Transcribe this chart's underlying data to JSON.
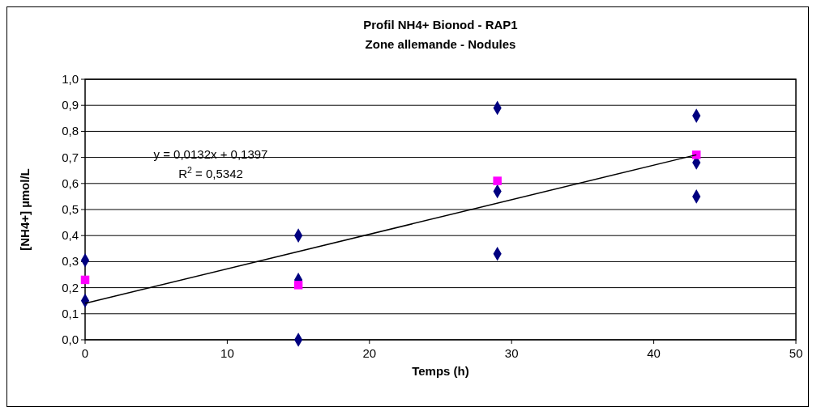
{
  "chart_data": {
    "type": "scatter",
    "title": "Profil NH4+ Bionod - RAP1",
    "subtitle": "Zone allemande - Nodules",
    "xlabel": "Temps (h)",
    "ylabel": "[NH4+] µmol/L",
    "xlim": [
      0,
      50
    ],
    "xticks": [
      0,
      10,
      20,
      30,
      40,
      50
    ],
    "ylim": [
      0,
      1
    ],
    "yticks": [
      {
        "value": 0,
        "label": "0,0"
      },
      {
        "value": 0.1,
        "label": "0,1"
      },
      {
        "value": 0.2,
        "label": "0,2"
      },
      {
        "value": 0.3,
        "label": "0,3"
      },
      {
        "value": 0.4,
        "label": "0,4"
      },
      {
        "value": 0.5,
        "label": "0,5"
      },
      {
        "value": 0.6,
        "label": "0,6"
      },
      {
        "value": 0.7,
        "label": "0,7"
      },
      {
        "value": 0.8,
        "label": "0,8"
      },
      {
        "value": 0.9,
        "label": "0,9"
      },
      {
        "value": 1,
        "label": "1,0"
      }
    ],
    "grid": "y",
    "series": [
      {
        "marker": "diamond",
        "color": "#000080",
        "x": [
          0,
          0,
          15,
          15,
          15,
          29,
          29,
          29,
          43,
          43,
          43
        ],
        "values": [
          0.305,
          0.15,
          0.4,
          0.23,
          0.0,
          0.89,
          0.57,
          0.33,
          0.86,
          0.68,
          0.55
        ]
      },
      {
        "marker": "square",
        "color": "#ff00ff",
        "x": [
          0,
          15,
          29,
          43
        ],
        "values": [
          0.23,
          0.21,
          0.61,
          0.71
        ]
      },
      {
        "type": "line",
        "marker": "none",
        "color": "#000000",
        "x": [
          0,
          43
        ],
        "values": [
          0.14,
          0.71
        ]
      }
    ],
    "annotations": [
      "y = 0,0132x + 0,1397",
      "R$^{2}$ = 0,5342"
    ]
  }
}
